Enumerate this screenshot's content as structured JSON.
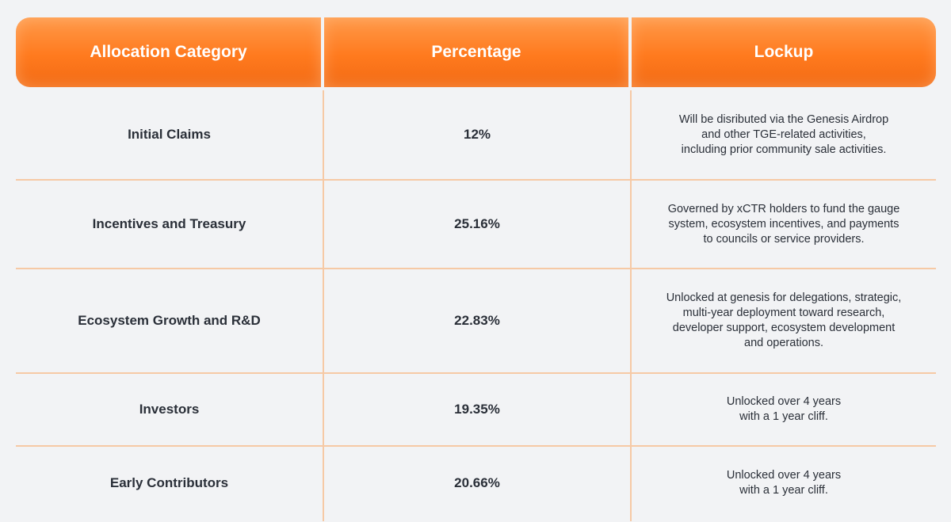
{
  "table": {
    "headers": [
      "Allocation Category",
      "Percentage",
      "Lockup"
    ],
    "rows": [
      {
        "category": "Initial Claims",
        "percentage": "12%",
        "lockup": "Will be disributed via the Genesis Airdrop\nand other TGE-related activities,\nincluding prior community sale activities."
      },
      {
        "category": "Incentives and Treasury",
        "percentage": "25.16%",
        "lockup": "Governed by xCTR holders to fund the gauge\nsystem, ecosystem incentives, and payments\nto councils or service providers."
      },
      {
        "category": "Ecosystem Growth and R&D",
        "percentage": "22.83%",
        "lockup": "Unlocked at genesis for delegations, strategic,\nmulti-year deployment toward research,\ndeveloper support, ecosystem development\nand operations."
      },
      {
        "category": "Investors",
        "percentage": "19.35%",
        "lockup": "Unlocked over 4 years\nwith a 1 year cliff."
      },
      {
        "category": "Early Contributors",
        "percentage": "20.66%",
        "lockup": "Unlocked over 4 years\nwith a 1 year cliff."
      }
    ]
  },
  "colors": {
    "header_orange": "#ff7a1e",
    "divider": "#f6c9a5",
    "background": "#f2f3f5",
    "text": "#2a2f38"
  }
}
